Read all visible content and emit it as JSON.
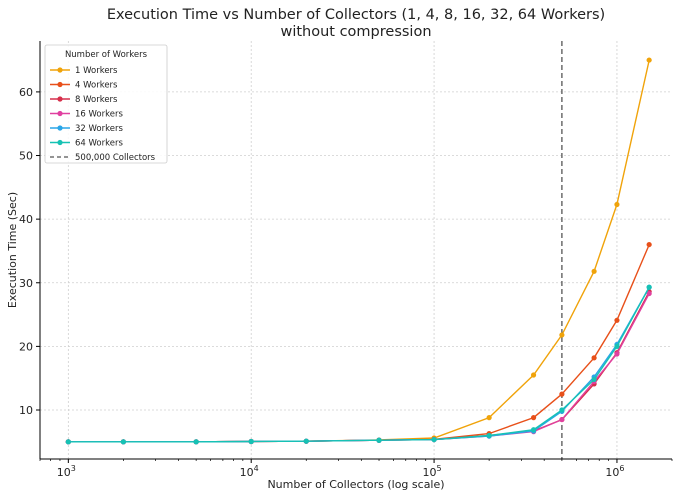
{
  "chart_data": {
    "type": "line",
    "title": "Execution Time vs Number of Collectors (1, 4, 8, 16, 32, 64 Workers)",
    "subtitle": "without compression",
    "xlabel": "Number of Collectors (log scale)",
    "ylabel": "Execution Time (Sec)",
    "xscale": "log",
    "xlim": [
      700,
      2000000
    ],
    "ylim": [
      2.3,
      68
    ],
    "grid": true,
    "x_ticks": [
      {
        "value": 1000,
        "base": "10",
        "exp": "3"
      },
      {
        "value": 10000,
        "base": "10",
        "exp": "4"
      },
      {
        "value": 100000,
        "base": "10",
        "exp": "5"
      },
      {
        "value": 1000000,
        "base": "10",
        "exp": "6"
      }
    ],
    "y_ticks": [
      10,
      20,
      30,
      40,
      50,
      60
    ],
    "x": [
      1000,
      2000,
      5000,
      10000,
      20000,
      50000,
      100000,
      200000,
      350000,
      500000,
      750000,
      1000000,
      1500000
    ],
    "legend": {
      "title": "Number of Workers",
      "position": "top-left"
    },
    "series": [
      {
        "name": "1 Workers",
        "color": "#f0a30a",
        "values": [
          5.0,
          5.0,
          5.0,
          5.05,
          5.1,
          5.3,
          5.6,
          8.8,
          15.5,
          21.8,
          31.8,
          42.3,
          65.0
        ]
      },
      {
        "name": "4 Workers",
        "color": "#e8501a",
        "values": [
          5.0,
          5.0,
          5.0,
          5.05,
          5.1,
          5.25,
          5.4,
          6.3,
          8.8,
          12.5,
          18.2,
          24.1,
          36.0
        ]
      },
      {
        "name": "8 Workers",
        "color": "#d62f4b",
        "values": [
          5.0,
          5.0,
          5.0,
          5.05,
          5.1,
          5.25,
          5.35,
          6.0,
          6.7,
          8.5,
          14.1,
          19.0,
          28.6
        ]
      },
      {
        "name": "16 Workers",
        "color": "#e040a0",
        "values": [
          5.0,
          5.0,
          5.0,
          5.05,
          5.1,
          5.25,
          5.35,
          5.9,
          6.6,
          8.5,
          14.5,
          18.8,
          28.3
        ]
      },
      {
        "name": "32 Workers",
        "color": "#2aa6e8",
        "values": [
          5.0,
          5.0,
          5.0,
          5.05,
          5.1,
          5.25,
          5.35,
          5.9,
          6.7,
          9.8,
          15.2,
          20.3,
          29.3
        ]
      },
      {
        "name": "64 Workers",
        "color": "#16c2b4",
        "values": [
          5.0,
          5.0,
          5.0,
          5.05,
          5.1,
          5.25,
          5.35,
          6.0,
          6.9,
          10.0,
          14.8,
          20.0,
          29.3
        ]
      }
    ],
    "vline": {
      "x": 500000,
      "label": "500,000 Collectors",
      "color": "#555555",
      "style": "dashed"
    }
  }
}
